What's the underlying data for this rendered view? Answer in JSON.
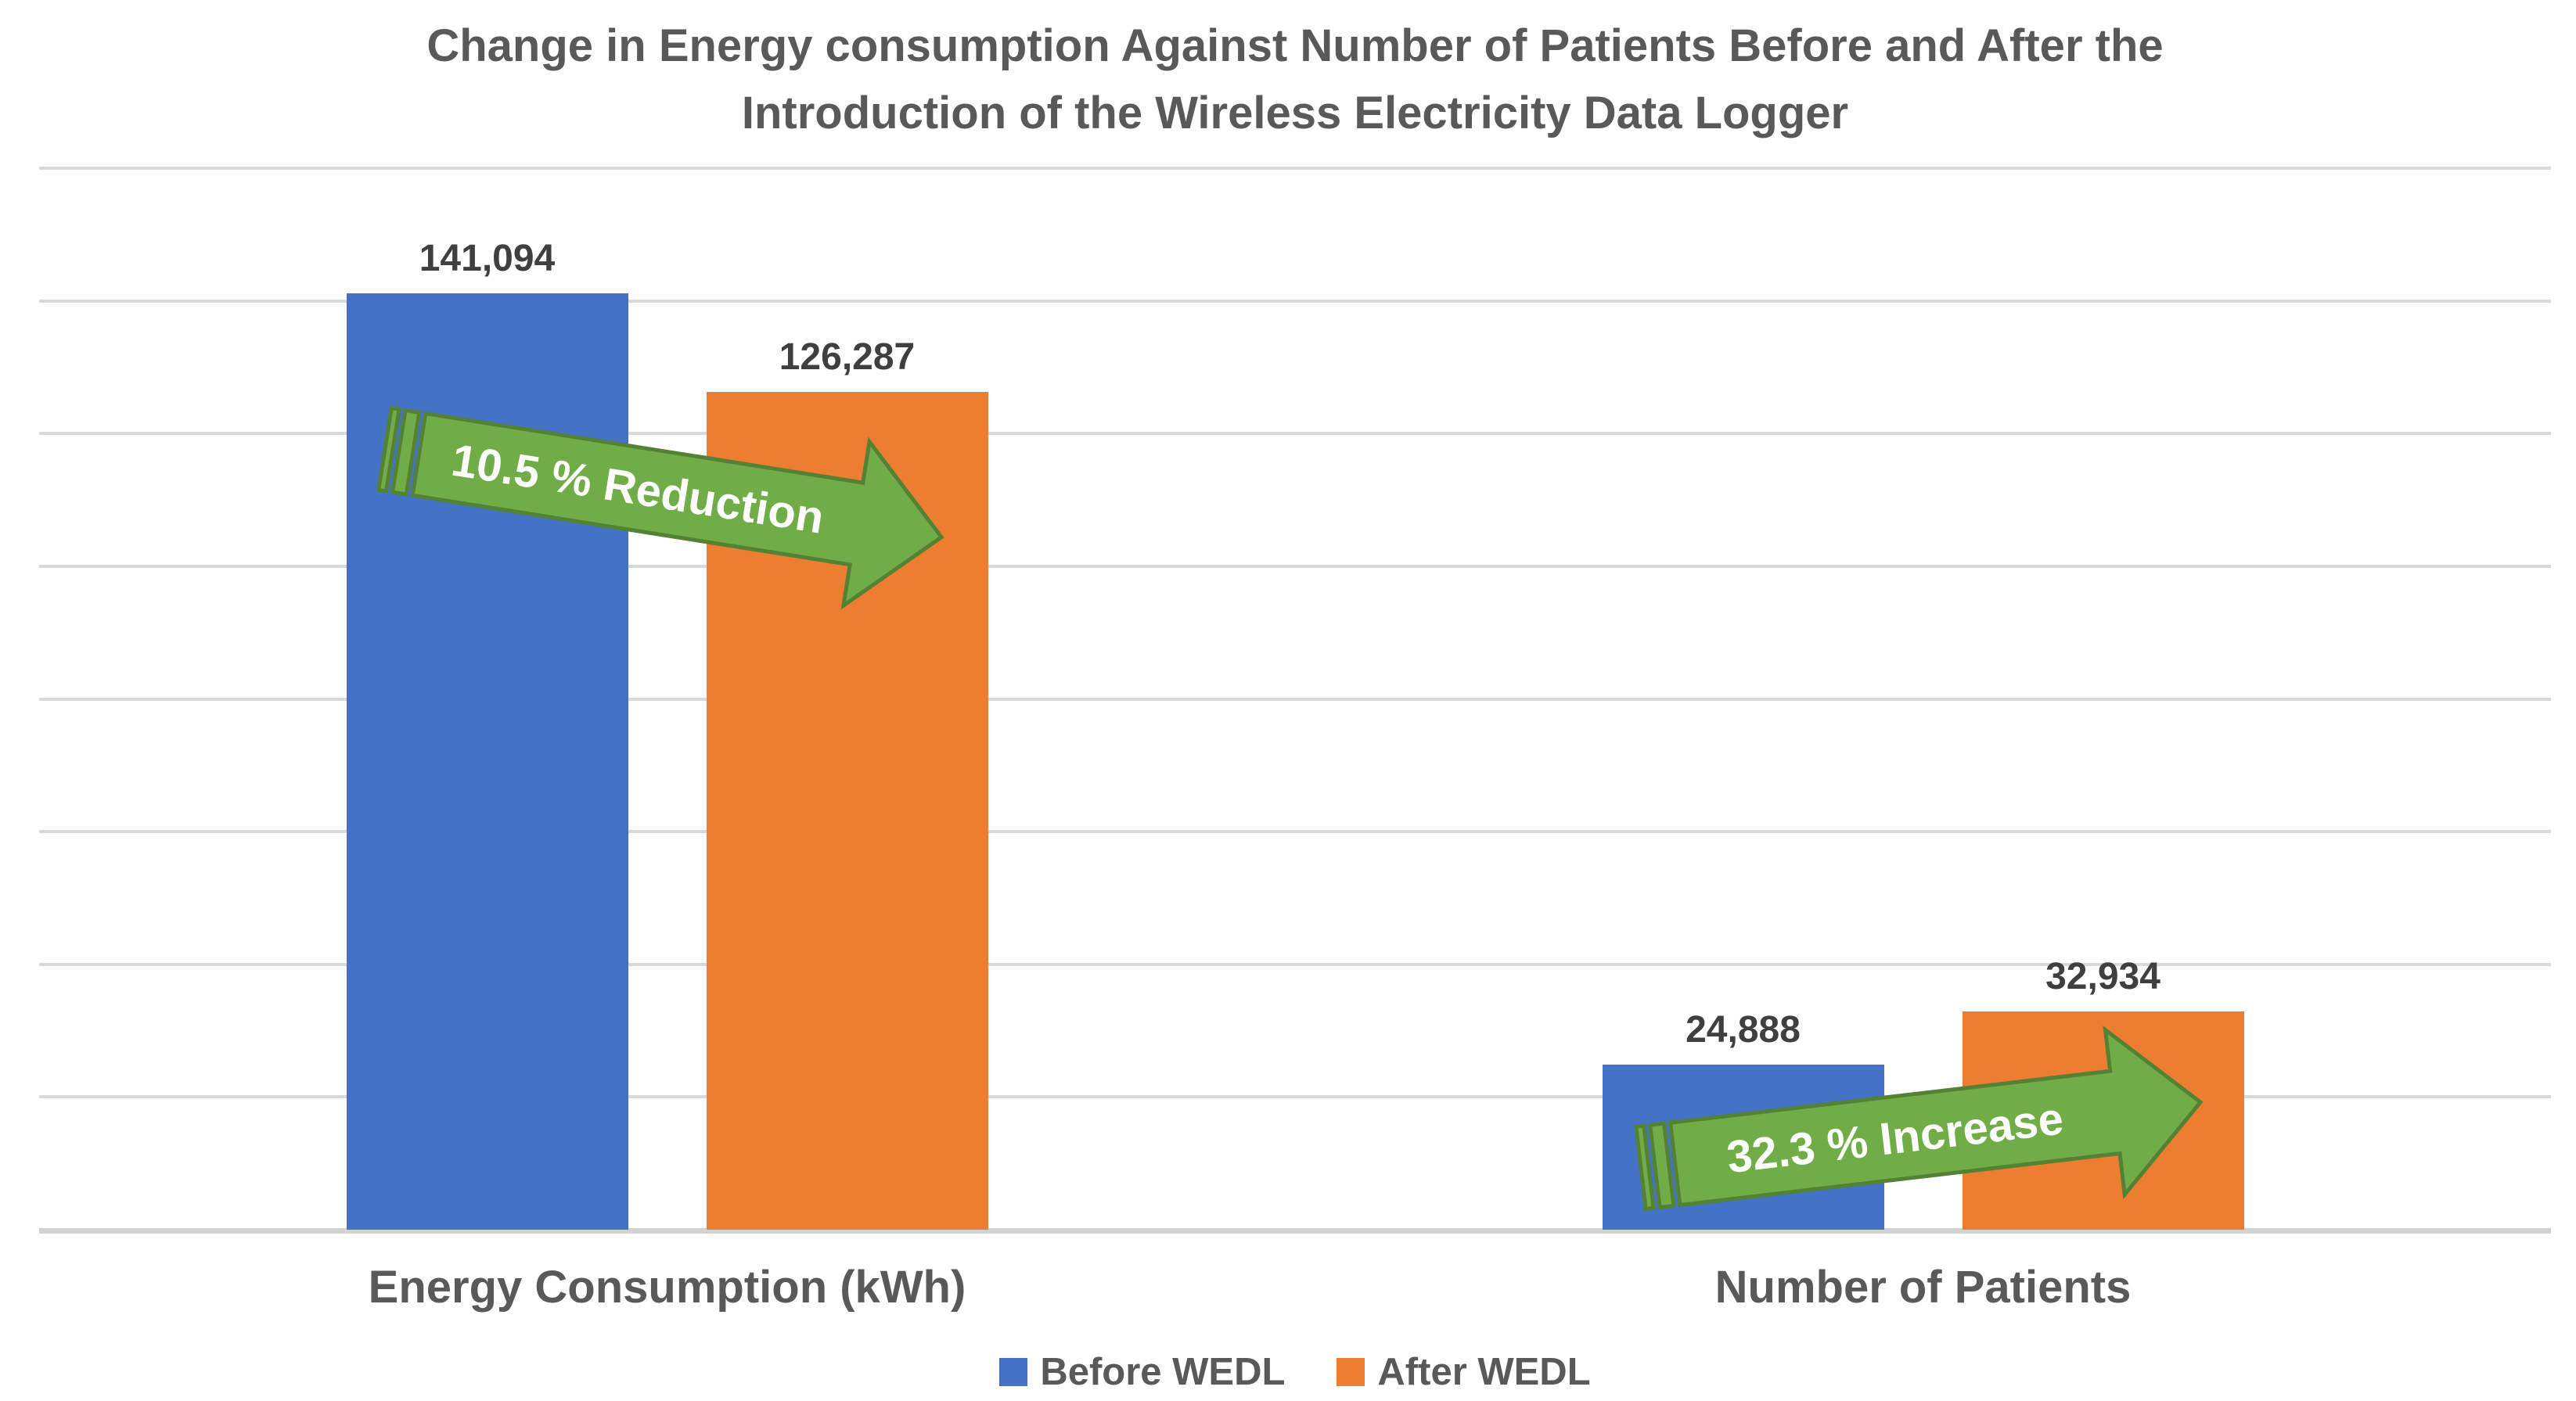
{
  "chart_data": {
    "type": "bar",
    "title": "Change in Energy consumption Against Number of Patients Before and After the Introduction of the Wireless Electricity Data Logger",
    "title_lines": [
      "Change in Energy consumption Against Number of Patients Before and After the",
      "Introduction of the Wireless Electricity Data Logger"
    ],
    "categories": [
      "Energy Consumption (kWh)",
      "Number of Patients"
    ],
    "series": [
      {
        "name": "Before WEDL",
        "color": "#4472C4",
        "values": [
          141094,
          24888
        ],
        "labels": [
          "141,094",
          "24,888"
        ]
      },
      {
        "name": "After WEDL",
        "color": "#ED7D31",
        "values": [
          126287,
          32934
        ],
        "labels": [
          "126,287",
          "32,934"
        ]
      }
    ],
    "ylim": [
      0,
      160000
    ],
    "gridline_step": 20000,
    "grid": true,
    "y_axis_labels_visible": false,
    "legend_position": "bottom",
    "annotations": [
      {
        "text": "10.5 % Reduction",
        "shape": "striped-right-arrow",
        "direction": "down-right",
        "fill": "#70AD47",
        "border": "#548235"
      },
      {
        "text": "32.3 % Increase",
        "shape": "striped-right-arrow",
        "direction": "up-right",
        "fill": "#70AD47",
        "border": "#548235"
      }
    ]
  },
  "colors": {
    "background": "#FFFFFF",
    "title_text": "#595959",
    "data_label_text": "#3F3F3F",
    "gridline": "#D9D9D9",
    "axis_line": "#D2D2D2"
  }
}
